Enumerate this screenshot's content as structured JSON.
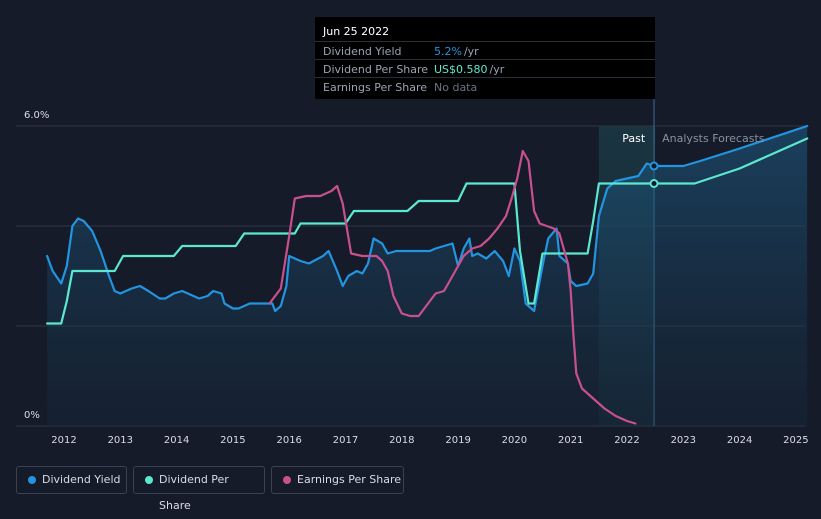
{
  "colors": {
    "background": "#151b28",
    "dividend_yield": "#2394df",
    "dividend_per_share": "#5ce8d0",
    "earnings_per_share": "#c8508e",
    "grid": "#2e3544",
    "forecast_band": "#1a3a4a"
  },
  "tooltip": {
    "date": "Jun 25 2022",
    "rows": [
      {
        "label": "Dividend Yield",
        "value": "5.2%",
        "unit": "/yr",
        "color": "#2394df"
      },
      {
        "label": "Dividend Per Share",
        "value": "US$0.580",
        "unit": "/yr",
        "color": "#5ce8d0"
      },
      {
        "label": "Earnings Per Share",
        "value": "No data",
        "unit": "",
        "color": "#6b7280"
      }
    ]
  },
  "legend": [
    {
      "label": "Dividend Yield",
      "color": "#2394df"
    },
    {
      "label": "Dividend Per Share",
      "color": "#5ce8d0"
    },
    {
      "label": "Earnings Per Share",
      "color": "#c8508e"
    }
  ],
  "chart_data": {
    "type": "line",
    "y_labels": {
      "top": "6.0%",
      "bottom": "0%"
    },
    "ylim": [
      0,
      6.0
    ],
    "xlim": [
      2011.7,
      2025.2
    ],
    "x_ticks": [
      "2012",
      "2013",
      "2014",
      "2015",
      "2016",
      "2017",
      "2018",
      "2019",
      "2020",
      "2021",
      "2022",
      "2023",
      "2024",
      "2025"
    ],
    "annotations": {
      "past": "Past",
      "forecast": "Analysts Forecasts"
    },
    "past_band": [
      2021.5,
      2022.5
    ],
    "cursor_x": 2022.48,
    "grid": true,
    "series": [
      {
        "name": "Dividend Yield",
        "color": "#2394df",
        "points": [
          [
            2011.7,
            3.4
          ],
          [
            2011.8,
            3.1
          ],
          [
            2011.95,
            2.85
          ],
          [
            2012.05,
            3.2
          ],
          [
            2012.15,
            4.0
          ],
          [
            2012.25,
            4.15
          ],
          [
            2012.35,
            4.1
          ],
          [
            2012.5,
            3.9
          ],
          [
            2012.65,
            3.5
          ],
          [
            2012.8,
            3.0
          ],
          [
            2012.9,
            2.7
          ],
          [
            2013.0,
            2.65
          ],
          [
            2013.2,
            2.75
          ],
          [
            2013.35,
            2.8
          ],
          [
            2013.5,
            2.7
          ],
          [
            2013.7,
            2.55
          ],
          [
            2013.8,
            2.55
          ],
          [
            2013.95,
            2.65
          ],
          [
            2014.1,
            2.7
          ],
          [
            2014.3,
            2.6
          ],
          [
            2014.4,
            2.55
          ],
          [
            2014.55,
            2.6
          ],
          [
            2014.65,
            2.7
          ],
          [
            2014.8,
            2.65
          ],
          [
            2014.85,
            2.45
          ],
          [
            2015.0,
            2.35
          ],
          [
            2015.1,
            2.35
          ],
          [
            2015.3,
            2.45
          ],
          [
            2015.5,
            2.45
          ],
          [
            2015.7,
            2.45
          ],
          [
            2015.75,
            2.3
          ],
          [
            2015.85,
            2.4
          ],
          [
            2015.95,
            2.8
          ],
          [
            2016.0,
            3.4
          ],
          [
            2016.2,
            3.3
          ],
          [
            2016.35,
            3.25
          ],
          [
            2016.6,
            3.4
          ],
          [
            2016.7,
            3.5
          ],
          [
            2016.85,
            3.1
          ],
          [
            2016.95,
            2.8
          ],
          [
            2017.05,
            3.0
          ],
          [
            2017.2,
            3.1
          ],
          [
            2017.3,
            3.05
          ],
          [
            2017.4,
            3.25
          ],
          [
            2017.5,
            3.75
          ],
          [
            2017.65,
            3.65
          ],
          [
            2017.75,
            3.45
          ],
          [
            2017.9,
            3.5
          ],
          [
            2018.2,
            3.5
          ],
          [
            2018.5,
            3.5
          ],
          [
            2018.6,
            3.55
          ],
          [
            2018.75,
            3.6
          ],
          [
            2018.9,
            3.65
          ],
          [
            2019.0,
            3.2
          ],
          [
            2019.1,
            3.55
          ],
          [
            2019.2,
            3.75
          ],
          [
            2019.25,
            3.4
          ],
          [
            2019.35,
            3.45
          ],
          [
            2019.5,
            3.35
          ],
          [
            2019.65,
            3.5
          ],
          [
            2019.8,
            3.3
          ],
          [
            2019.9,
            3.0
          ],
          [
            2020.0,
            3.55
          ],
          [
            2020.1,
            3.3
          ],
          [
            2020.2,
            2.45
          ],
          [
            2020.35,
            2.3
          ],
          [
            2020.5,
            3.2
          ],
          [
            2020.6,
            3.75
          ],
          [
            2020.75,
            3.95
          ],
          [
            2020.8,
            3.4
          ],
          [
            2020.95,
            3.25
          ],
          [
            2021.0,
            2.9
          ],
          [
            2021.1,
            2.8
          ],
          [
            2021.3,
            2.85
          ],
          [
            2021.4,
            3.05
          ],
          [
            2021.5,
            4.2
          ],
          [
            2021.65,
            4.75
          ],
          [
            2021.8,
            4.9
          ],
          [
            2022.0,
            4.95
          ],
          [
            2022.2,
            5.0
          ],
          [
            2022.35,
            5.25
          ],
          [
            2022.48,
            5.2
          ],
          [
            2023.0,
            5.2
          ],
          [
            2023.3,
            5.3
          ],
          [
            2024.0,
            5.55
          ],
          [
            2025.2,
            6.0
          ]
        ]
      },
      {
        "name": "Dividend Per Share",
        "color": "#5ce8d0",
        "points": [
          [
            2011.7,
            2.05
          ],
          [
            2011.95,
            2.05
          ],
          [
            2012.05,
            2.5
          ],
          [
            2012.15,
            3.1
          ],
          [
            2012.9,
            3.1
          ],
          [
            2013.05,
            3.4
          ],
          [
            2013.95,
            3.4
          ],
          [
            2014.1,
            3.6
          ],
          [
            2015.05,
            3.6
          ],
          [
            2015.2,
            3.85
          ],
          [
            2016.1,
            3.85
          ],
          [
            2016.2,
            4.05
          ],
          [
            2017.0,
            4.05
          ],
          [
            2017.15,
            4.3
          ],
          [
            2018.1,
            4.3
          ],
          [
            2018.3,
            4.5
          ],
          [
            2019.0,
            4.5
          ],
          [
            2019.15,
            4.85
          ],
          [
            2020.0,
            4.85
          ],
          [
            2020.1,
            3.5
          ],
          [
            2020.25,
            2.45
          ],
          [
            2020.35,
            2.45
          ],
          [
            2020.5,
            3.45
          ],
          [
            2021.3,
            3.45
          ],
          [
            2021.4,
            4.1
          ],
          [
            2021.5,
            4.85
          ],
          [
            2022.48,
            4.85
          ],
          [
            2023.2,
            4.85
          ],
          [
            2024.0,
            5.15
          ],
          [
            2025.2,
            5.75
          ]
        ]
      },
      {
        "name": "Earnings Per Share",
        "color": "#c8508e",
        "points": [
          [
            2015.65,
            2.45
          ],
          [
            2015.85,
            2.75
          ],
          [
            2016.0,
            3.8
          ],
          [
            2016.1,
            4.55
          ],
          [
            2016.3,
            4.6
          ],
          [
            2016.55,
            4.6
          ],
          [
            2016.75,
            4.7
          ],
          [
            2016.85,
            4.8
          ],
          [
            2016.95,
            4.45
          ],
          [
            2017.1,
            3.45
          ],
          [
            2017.3,
            3.4
          ],
          [
            2017.55,
            3.4
          ],
          [
            2017.65,
            3.3
          ],
          [
            2017.75,
            3.1
          ],
          [
            2017.85,
            2.6
          ],
          [
            2018.0,
            2.25
          ],
          [
            2018.15,
            2.2
          ],
          [
            2018.3,
            2.2
          ],
          [
            2018.4,
            2.35
          ],
          [
            2018.6,
            2.65
          ],
          [
            2018.75,
            2.7
          ],
          [
            2018.9,
            3.0
          ],
          [
            2019.1,
            3.4
          ],
          [
            2019.25,
            3.55
          ],
          [
            2019.4,
            3.6
          ],
          [
            2019.55,
            3.75
          ],
          [
            2019.7,
            3.95
          ],
          [
            2019.85,
            4.2
          ],
          [
            2019.95,
            4.55
          ],
          [
            2020.05,
            4.95
          ],
          [
            2020.15,
            5.5
          ],
          [
            2020.25,
            5.3
          ],
          [
            2020.35,
            4.3
          ],
          [
            2020.45,
            4.05
          ],
          [
            2020.7,
            3.95
          ],
          [
            2020.8,
            3.85
          ],
          [
            2020.95,
            3.25
          ],
          [
            2021.0,
            2.7
          ],
          [
            2021.05,
            1.8
          ],
          [
            2021.1,
            1.05
          ],
          [
            2021.2,
            0.75
          ],
          [
            2021.4,
            0.55
          ],
          [
            2021.6,
            0.35
          ],
          [
            2021.8,
            0.2
          ],
          [
            2022.0,
            0.1
          ],
          [
            2022.15,
            0.05
          ]
        ]
      }
    ]
  }
}
